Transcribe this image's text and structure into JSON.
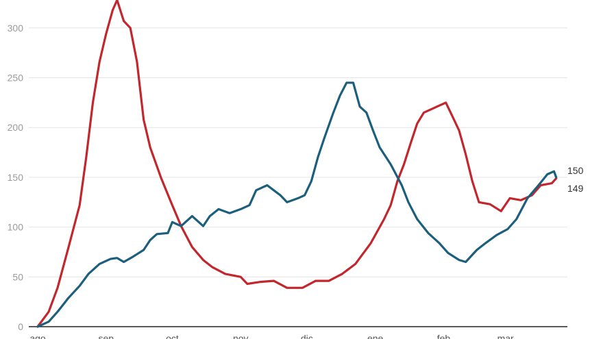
{
  "chart_data": {
    "type": "line",
    "title": "",
    "xlabel": "",
    "ylabel": "",
    "ylim": [
      0,
      330
    ],
    "yticks": [
      0,
      50,
      100,
      150,
      200,
      250,
      300
    ],
    "ytick_labels": [
      "0",
      "50",
      "100",
      "150",
      "200",
      "250",
      "300"
    ],
    "xlim": [
      0,
      240
    ],
    "xticks": [
      0,
      31,
      61,
      92,
      122,
      153,
      184,
      212
    ],
    "xtick_labels": [
      "ago",
      "sep",
      "oct",
      "nov",
      "dic",
      "ene",
      "feb",
      "mar"
    ],
    "x_unit": "days since start of ago",
    "grid": true,
    "legend": "none",
    "series": [
      {
        "name": "red",
        "color": "#c1272d",
        "end_label": "149",
        "points": [
          [
            0,
            0
          ],
          [
            5,
            15
          ],
          [
            9,
            39
          ],
          [
            14,
            80
          ],
          [
            19,
            122
          ],
          [
            22,
            170
          ],
          [
            25,
            225
          ],
          [
            28,
            266
          ],
          [
            31,
            294
          ],
          [
            34,
            318
          ],
          [
            36,
            328
          ],
          [
            39,
            307
          ],
          [
            42,
            300
          ],
          [
            45,
            266
          ],
          [
            48,
            208
          ],
          [
            51,
            180
          ],
          [
            56,
            149
          ],
          [
            61,
            122
          ],
          [
            65,
            101
          ],
          [
            70,
            80
          ],
          [
            75,
            67
          ],
          [
            79,
            60
          ],
          [
            85,
            53
          ],
          [
            92,
            50
          ],
          [
            95,
            43
          ],
          [
            101,
            45
          ],
          [
            107,
            46
          ],
          [
            113,
            39
          ],
          [
            120,
            39
          ],
          [
            126,
            46
          ],
          [
            132,
            46
          ],
          [
            138,
            53
          ],
          [
            144,
            63
          ],
          [
            151,
            84
          ],
          [
            157,
            108
          ],
          [
            160,
            122
          ],
          [
            163,
            146
          ],
          [
            166,
            163
          ],
          [
            169,
            184
          ],
          [
            172,
            204
          ],
          [
            175,
            215
          ],
          [
            182,
            222
          ],
          [
            185,
            225
          ],
          [
            188,
            211
          ],
          [
            191,
            197
          ],
          [
            194,
            173
          ],
          [
            197,
            146
          ],
          [
            200,
            125
          ],
          [
            205,
            123
          ],
          [
            210,
            116
          ],
          [
            214,
            129
          ],
          [
            219,
            127
          ],
          [
            224,
            132
          ],
          [
            228,
            142
          ],
          [
            233,
            144
          ],
          [
            235,
            149
          ]
        ]
      },
      {
        "name": "blue",
        "color": "#1c5f7c",
        "end_label": "150",
        "points": [
          [
            0,
            0
          ],
          [
            5,
            5
          ],
          [
            9,
            15
          ],
          [
            14,
            29
          ],
          [
            19,
            41
          ],
          [
            23,
            53
          ],
          [
            28,
            63
          ],
          [
            33,
            68
          ],
          [
            36,
            69
          ],
          [
            39,
            65
          ],
          [
            43,
            70
          ],
          [
            48,
            77
          ],
          [
            51,
            87
          ],
          [
            54,
            93
          ],
          [
            59,
            94
          ],
          [
            61,
            105
          ],
          [
            65,
            101
          ],
          [
            70,
            111
          ],
          [
            75,
            101
          ],
          [
            78,
            111
          ],
          [
            82,
            118
          ],
          [
            87,
            114
          ],
          [
            92,
            118
          ],
          [
            96,
            122
          ],
          [
            99,
            137
          ],
          [
            104,
            142
          ],
          [
            107,
            137
          ],
          [
            110,
            132
          ],
          [
            113,
            125
          ],
          [
            118,
            129
          ],
          [
            121,
            132
          ],
          [
            124,
            146
          ],
          [
            127,
            170
          ],
          [
            130,
            190
          ],
          [
            134,
            215
          ],
          [
            137,
            232
          ],
          [
            140,
            245
          ],
          [
            143,
            245
          ],
          [
            146,
            221
          ],
          [
            149,
            215
          ],
          [
            152,
            197
          ],
          [
            155,
            180
          ],
          [
            160,
            163
          ],
          [
            165,
            142
          ],
          [
            168,
            125
          ],
          [
            172,
            108
          ],
          [
            177,
            94
          ],
          [
            182,
            84
          ],
          [
            186,
            74
          ],
          [
            191,
            67
          ],
          [
            194,
            65
          ],
          [
            199,
            77
          ],
          [
            203,
            84
          ],
          [
            208,
            92
          ],
          [
            213,
            98
          ],
          [
            217,
            108
          ],
          [
            222,
            129
          ],
          [
            227,
            142
          ],
          [
            231,
            153
          ],
          [
            234,
            156
          ],
          [
            235,
            150
          ]
        ]
      }
    ]
  }
}
